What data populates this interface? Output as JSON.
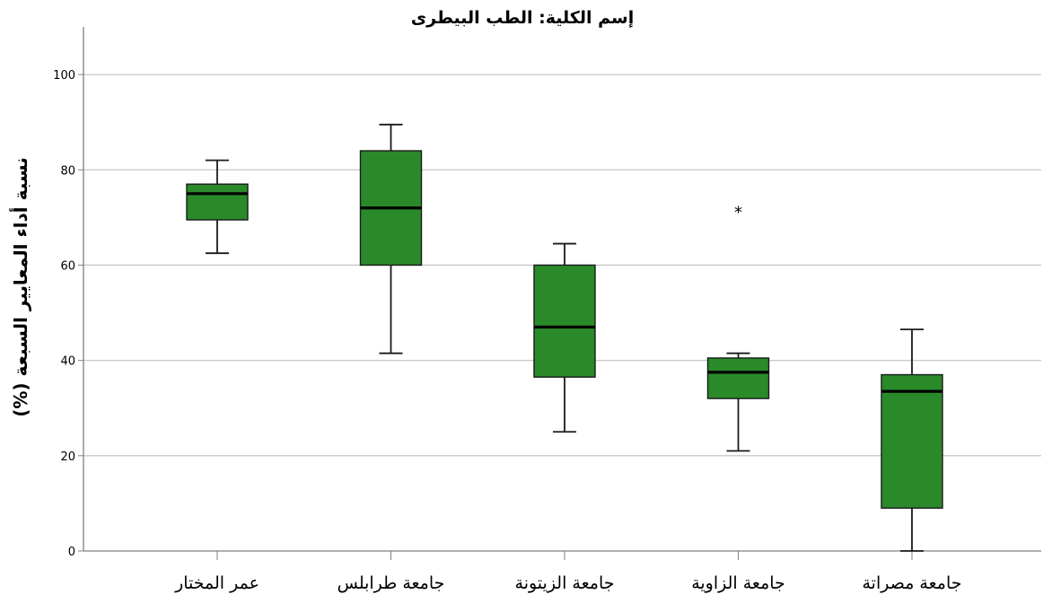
{
  "chart_data": {
    "type": "boxplot",
    "title": "إسم الكلية: الطب البيطرى",
    "xlabel": "",
    "ylabel": "نسبة أداء المعايير السبعة (%)",
    "ylim": [
      0,
      110
    ],
    "yticks": [
      0,
      20,
      40,
      60,
      80,
      100
    ],
    "grid": true,
    "colors": {
      "box_fill": "#2a8a2a",
      "box_stroke": "#1a1a1a",
      "median": "#000000",
      "gridline": "#c8c8c8",
      "axis": "#808080"
    },
    "categories": [
      "عمر المختار",
      "جامعة طرابلس",
      "جامعة الزيتونة",
      "جامعة الزاوية",
      "جامعة مصراتة"
    ],
    "boxes": [
      {
        "whisker_low": 62.5,
        "q1": 69.5,
        "median": 75,
        "q3": 77,
        "whisker_high": 82,
        "outliers": []
      },
      {
        "whisker_low": 41.5,
        "q1": 60,
        "median": 72,
        "q3": 84,
        "whisker_high": 89.5,
        "outliers": []
      },
      {
        "whisker_low": 25,
        "q1": 36.5,
        "median": 47,
        "q3": 60,
        "whisker_high": 64.5,
        "outliers": []
      },
      {
        "whisker_low": 21,
        "q1": 32,
        "median": 37.5,
        "q3": 40.5,
        "whisker_high": 41.5,
        "outliers": [
          71.5
        ]
      },
      {
        "whisker_low": 0,
        "q1": 9,
        "median": 33.5,
        "q3": 37,
        "whisker_high": 46.5,
        "outliers": []
      }
    ]
  }
}
